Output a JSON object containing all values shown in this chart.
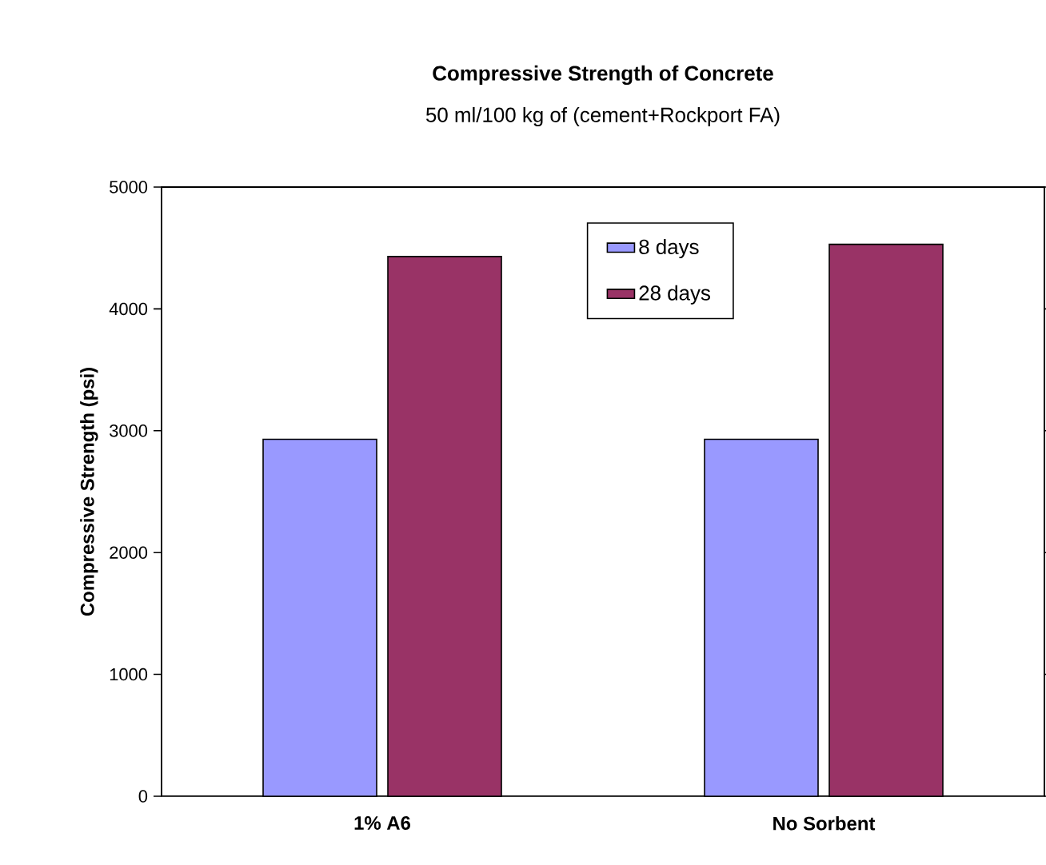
{
  "chart_data": {
    "type": "bar",
    "title": "Compressive Strength of Concrete",
    "subtitle": "50 ml/100 kg of (cement+Rockport FA)",
    "ylabel": "Compressive Strength (psi)",
    "categories": [
      "1% A6",
      "No Sorbent"
    ],
    "series": [
      {
        "name": "8 days",
        "color": "#9999ff",
        "values": [
          2930,
          2930
        ]
      },
      {
        "name": "28 days",
        "color": "#993366",
        "values": [
          4430,
          4530
        ]
      }
    ],
    "ylim": [
      0,
      5000
    ],
    "yticks": [
      0,
      1000,
      2000,
      3000,
      4000,
      5000
    ],
    "grid": false,
    "legend": "top"
  }
}
